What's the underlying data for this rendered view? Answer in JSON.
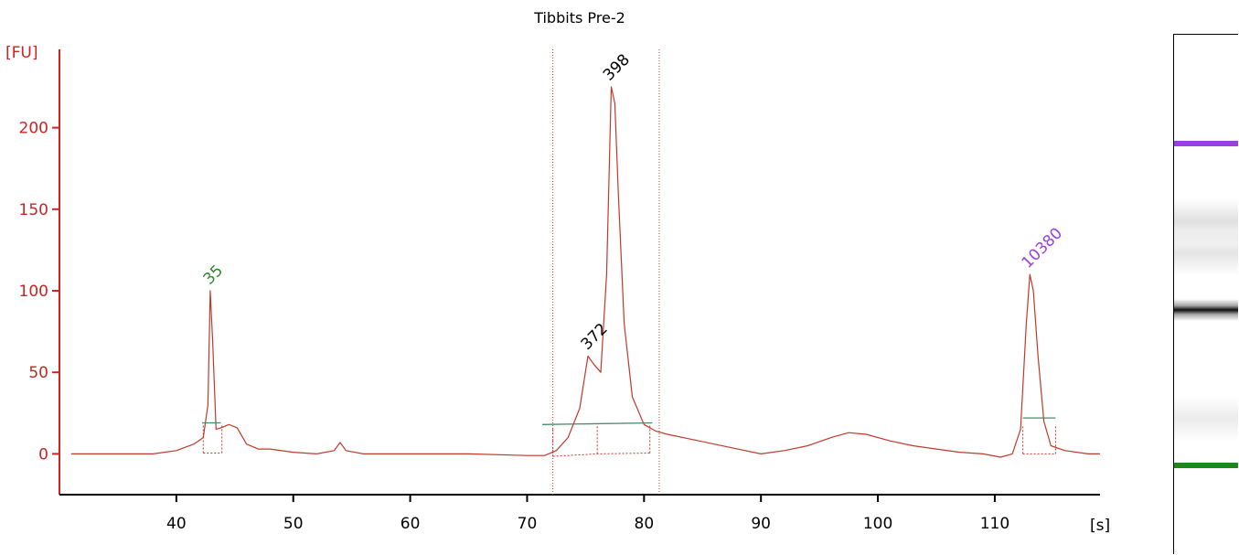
{
  "chart_data": {
    "type": "line",
    "title": "Tibbits Pre-2",
    "xlabel": "[s]",
    "ylabel": "[FU]",
    "xlim": [
      30,
      119
    ],
    "ylim": [
      -25,
      248
    ],
    "x_ticks": [
      40,
      50,
      60,
      70,
      80,
      90,
      100,
      110
    ],
    "y_ticks": [
      0,
      50,
      100,
      150,
      200
    ],
    "grid": false,
    "legend": "none",
    "series": [
      {
        "color": "#c0392b",
        "x": [
          31,
          38,
          40,
          41.5,
          42.3,
          42.7,
          42.9,
          43.1,
          43.4,
          43.8,
          44.5,
          45.2,
          46,
          47,
          48,
          50,
          52,
          53.5,
          54,
          54.5,
          56,
          58,
          60,
          65,
          70,
          71.5,
          72.5,
          73.5,
          74.5,
          75.2,
          75.7,
          76.3,
          76.8,
          77.2,
          77.5,
          77.8,
          78.3,
          79,
          80,
          81,
          82,
          84,
          86,
          88,
          90,
          92,
          94,
          96,
          97.5,
          99,
          101,
          103,
          105,
          107,
          109,
          110.5,
          111.5,
          112.2,
          112.7,
          113,
          113.3,
          113.7,
          114.2,
          114.8,
          116,
          118,
          119
        ],
        "y": [
          0,
          0,
          2,
          6,
          10,
          30,
          100,
          70,
          15,
          16,
          18,
          16,
          6,
          3,
          3,
          1,
          0,
          2,
          7,
          2,
          0,
          0,
          0,
          0,
          -1,
          -1,
          2,
          10,
          28,
          60,
          55,
          50,
          110,
          225,
          215,
          160,
          80,
          35,
          18,
          14,
          12,
          9,
          6,
          3,
          0,
          2,
          5,
          10,
          13,
          12,
          8,
          5,
          3,
          1,
          0,
          -2,
          0,
          15,
          80,
          110,
          100,
          60,
          20,
          5,
          2,
          0,
          0
        ]
      }
    ],
    "peaks": [
      {
        "label": "35",
        "x": 43.0,
        "y": 100,
        "color": "#2a8a2a"
      },
      {
        "label": "372",
        "x": 75.3,
        "y": 60,
        "color": "#000000"
      },
      {
        "label": "398",
        "x": 77.2,
        "y": 225,
        "color": "#000000"
      },
      {
        "label": "10380",
        "x": 113.0,
        "y": 110,
        "color": "#9b3fe0"
      }
    ],
    "region_markers_x": [
      72.2,
      81.3
    ],
    "baselines": [
      {
        "x": [
          42.2,
          43.8
        ],
        "y": [
          19,
          19
        ]
      },
      {
        "x": [
          71.3,
          80.7
        ],
        "y": [
          18,
          19
        ]
      },
      {
        "x": [
          112.4,
          115.2
        ],
        "y": [
          22,
          22
        ]
      }
    ],
    "peak_boundaries": [
      {
        "x": [
          42.3,
          43.9
        ],
        "y": [
          0.5,
          0.5
        ]
      },
      {
        "x": [
          72.2,
          76.0,
          80.5
        ],
        "y": [
          -1.5,
          0,
          0.5
        ]
      },
      {
        "x": [
          112.4,
          115.2
        ],
        "y": [
          0,
          0
        ]
      }
    ]
  },
  "colors": {
    "axis": "#cc2222",
    "trace": "#c0392b",
    "baseline": "#4a8a6a",
    "marker": "#c0392b",
    "gel_upper_marker": "#9b3fe0",
    "gel_lower_marker": "#1a8a1a"
  },
  "gel": {
    "bands": [
      {
        "name": "upper-marker-band",
        "position": 0.21,
        "intensity": 1.0,
        "color": "#9b3fe0"
      },
      {
        "name": "smear-band-1",
        "position": 0.36,
        "intensity": 0.12,
        "color": "#000000"
      },
      {
        "name": "sample-band-main",
        "position": 0.53,
        "intensity": 1.0,
        "color": "#000000"
      },
      {
        "name": "smear-band-2",
        "position": 0.42,
        "intensity": 0.1,
        "color": "#000000"
      },
      {
        "name": "smear-band-3",
        "position": 0.74,
        "intensity": 0.08,
        "color": "#000000"
      },
      {
        "name": "lower-marker-band",
        "position": 0.83,
        "intensity": 1.0,
        "color": "#1a8a1a"
      }
    ]
  }
}
